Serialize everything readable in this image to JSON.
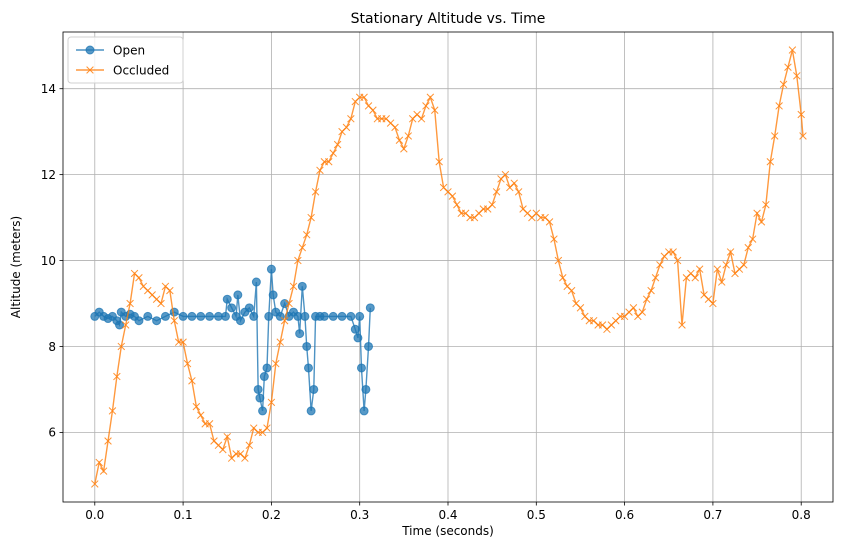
{
  "chart_data": {
    "type": "line",
    "title": "Stationary Altitude vs. Time",
    "xlabel": "Time (seconds)",
    "ylabel": "Altitude (meters)",
    "xlim": [
      -0.036,
      0.836
    ],
    "ylim": [
      4.38,
      15.32
    ],
    "xticks": [
      0.0,
      0.1,
      0.2,
      0.3,
      0.4,
      0.5,
      0.6,
      0.7,
      0.8
    ],
    "xtick_labels": [
      "0.0",
      "0.1",
      "0.2",
      "0.3",
      "0.4",
      "0.5",
      "0.6",
      "0.7",
      "0.8"
    ],
    "yticks": [
      6,
      8,
      10,
      12,
      14
    ],
    "ytick_labels": [
      "6",
      "8",
      "10",
      "12",
      "14"
    ],
    "grid": true,
    "legend_position": "top-left",
    "series": [
      {
        "name": "Open",
        "color": "#1f77b4",
        "marker": "circle",
        "x": [
          0.0,
          0.005,
          0.01,
          0.015,
          0.02,
          0.025,
          0.028,
          0.03,
          0.035,
          0.04,
          0.045,
          0.05,
          0.06,
          0.07,
          0.08,
          0.09,
          0.1,
          0.11,
          0.12,
          0.13,
          0.14,
          0.148,
          0.15,
          0.155,
          0.16,
          0.162,
          0.165,
          0.17,
          0.175,
          0.18,
          0.183,
          0.185,
          0.187,
          0.19,
          0.192,
          0.195,
          0.197,
          0.2,
          0.202,
          0.205,
          0.21,
          0.215,
          0.22,
          0.225,
          0.23,
          0.232,
          0.235,
          0.238,
          0.24,
          0.242,
          0.245,
          0.248,
          0.25,
          0.255,
          0.26,
          0.27,
          0.28,
          0.29,
          0.295,
          0.298,
          0.3,
          0.302,
          0.305,
          0.307,
          0.31,
          0.312
        ],
        "y": [
          8.7,
          8.8,
          8.7,
          8.65,
          8.7,
          8.6,
          8.5,
          8.8,
          8.7,
          8.75,
          8.7,
          8.6,
          8.7,
          8.6,
          8.7,
          8.8,
          8.7,
          8.7,
          8.7,
          8.7,
          8.7,
          8.7,
          9.1,
          8.9,
          8.7,
          9.2,
          8.6,
          8.8,
          8.9,
          8.7,
          9.5,
          7.0,
          6.8,
          6.5,
          7.3,
          7.5,
          8.7,
          9.8,
          9.2,
          8.8,
          8.7,
          9.0,
          8.7,
          8.8,
          8.7,
          8.3,
          9.4,
          8.7,
          8.0,
          7.5,
          6.5,
          7.0,
          8.7,
          8.7,
          8.7,
          8.7,
          8.7,
          8.7,
          8.4,
          8.2,
          8.7,
          7.5,
          6.5,
          7.0,
          8.0,
          8.9
        ]
      },
      {
        "name": "Occluded",
        "color": "#ff7f0e",
        "marker": "x",
        "x": [
          0.0,
          0.005,
          0.01,
          0.015,
          0.02,
          0.025,
          0.03,
          0.035,
          0.04,
          0.045,
          0.05,
          0.055,
          0.06,
          0.065,
          0.07,
          0.075,
          0.08,
          0.085,
          0.09,
          0.095,
          0.1,
          0.105,
          0.11,
          0.115,
          0.12,
          0.125,
          0.13,
          0.135,
          0.14,
          0.145,
          0.15,
          0.155,
          0.16,
          0.165,
          0.17,
          0.175,
          0.18,
          0.185,
          0.19,
          0.195,
          0.2,
          0.205,
          0.21,
          0.215,
          0.22,
          0.225,
          0.23,
          0.235,
          0.24,
          0.245,
          0.25,
          0.255,
          0.26,
          0.265,
          0.27,
          0.275,
          0.28,
          0.285,
          0.29,
          0.295,
          0.3,
          0.305,
          0.31,
          0.315,
          0.32,
          0.325,
          0.33,
          0.335,
          0.34,
          0.345,
          0.35,
          0.355,
          0.36,
          0.365,
          0.37,
          0.375,
          0.38,
          0.385,
          0.39,
          0.395,
          0.4,
          0.405,
          0.41,
          0.415,
          0.42,
          0.425,
          0.43,
          0.435,
          0.44,
          0.445,
          0.45,
          0.455,
          0.46,
          0.465,
          0.47,
          0.475,
          0.48,
          0.485,
          0.49,
          0.495,
          0.5,
          0.505,
          0.51,
          0.515,
          0.52,
          0.525,
          0.53,
          0.535,
          0.54,
          0.545,
          0.55,
          0.555,
          0.56,
          0.565,
          0.57,
          0.575,
          0.58,
          0.585,
          0.59,
          0.595,
          0.6,
          0.605,
          0.61,
          0.615,
          0.62,
          0.625,
          0.63,
          0.635,
          0.64,
          0.645,
          0.65,
          0.655,
          0.66,
          0.665,
          0.67,
          0.675,
          0.68,
          0.685,
          0.69,
          0.695,
          0.7,
          0.705,
          0.71,
          0.715,
          0.72,
          0.725,
          0.73,
          0.735,
          0.74,
          0.745,
          0.75,
          0.755,
          0.76,
          0.765,
          0.77,
          0.775,
          0.78,
          0.785,
          0.79,
          0.795,
          0.8,
          0.802
        ],
        "y": [
          4.8,
          5.3,
          5.1,
          5.8,
          6.5,
          7.3,
          8.0,
          8.5,
          9.0,
          9.7,
          9.6,
          9.4,
          9.3,
          9.2,
          9.1,
          9.0,
          9.4,
          9.3,
          8.6,
          8.1,
          8.1,
          7.6,
          7.2,
          6.6,
          6.4,
          6.2,
          6.2,
          5.8,
          5.7,
          5.6,
          5.9,
          5.4,
          5.5,
          5.5,
          5.4,
          5.7,
          6.1,
          6.0,
          6.0,
          6.1,
          6.7,
          7.6,
          8.1,
          8.6,
          9.0,
          9.4,
          10.0,
          10.3,
          10.6,
          11.0,
          11.6,
          12.1,
          12.3,
          12.3,
          12.5,
          12.7,
          13.0,
          13.1,
          13.3,
          13.7,
          13.8,
          13.8,
          13.6,
          13.5,
          13.3,
          13.3,
          13.3,
          13.2,
          13.1,
          12.8,
          12.6,
          12.9,
          13.3,
          13.4,
          13.3,
          13.6,
          13.8,
          13.5,
          12.3,
          11.7,
          11.6,
          11.5,
          11.3,
          11.1,
          11.1,
          11.0,
          11.0,
          11.1,
          11.2,
          11.2,
          11.3,
          11.6,
          11.9,
          12.0,
          11.7,
          11.8,
          11.6,
          11.2,
          11.1,
          11.0,
          11.1,
          11.0,
          11.0,
          10.9,
          10.5,
          10.0,
          9.6,
          9.4,
          9.3,
          9.0,
          8.9,
          8.7,
          8.6,
          8.6,
          8.5,
          8.5,
          8.4,
          8.5,
          8.6,
          8.7,
          8.7,
          8.8,
          8.9,
          8.7,
          8.8,
          9.1,
          9.3,
          9.6,
          9.9,
          10.1,
          10.2,
          10.2,
          10.0,
          8.5,
          9.6,
          9.7,
          9.6,
          9.8,
          9.2,
          9.1,
          9.0,
          9.8,
          9.5,
          9.9,
          10.2,
          9.7,
          9.8,
          9.9,
          10.3,
          10.5,
          11.1,
          10.9,
          11.3,
          12.3,
          12.9,
          13.6,
          14.1,
          14.5,
          14.9,
          14.3,
          13.4,
          12.9
        ]
      }
    ]
  }
}
